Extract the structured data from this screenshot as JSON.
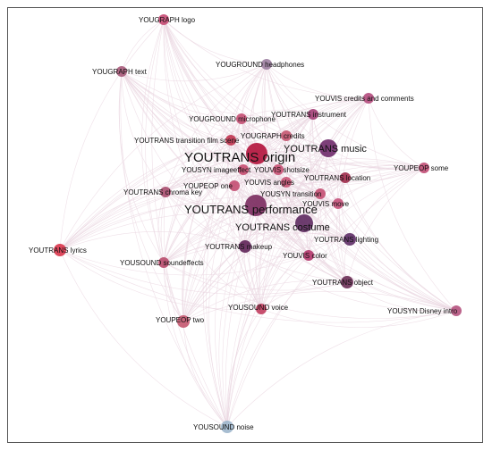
{
  "graph": {
    "nodes": [
      {
        "id": "yougraph_logo",
        "label": "YOUGRAPH logo",
        "color": "#c74a73",
        "weight": 2
      },
      {
        "id": "yougraph_text",
        "label": "YOUGRAPH text",
        "color": "#a85a7a",
        "weight": 2
      },
      {
        "id": "youground_headphones",
        "label": "YOUGROUND headphones",
        "color": "#9c7ea0",
        "weight": 2
      },
      {
        "id": "youvis_credits_comments",
        "label": "YOUVIS credits and comments",
        "color": "#b24a7c",
        "weight": 2
      },
      {
        "id": "youtrans_instrument",
        "label": "YOUTRANS instrument",
        "color": "#a33d75",
        "weight": 2
      },
      {
        "id": "youground_microphone",
        "label": "YOUGROUND microphone",
        "color": "#c44f73",
        "weight": 2
      },
      {
        "id": "yougraph_credits",
        "label": "YOUGRAPH credits",
        "color": "#c4546f",
        "weight": 2
      },
      {
        "id": "youtrans_music",
        "label": "YOUTRANS music",
        "color": "#6f2a6a",
        "weight": 5
      },
      {
        "id": "youtrans_transition_film",
        "label": "YOUTRANS transition film scene",
        "color": "#c0334f",
        "weight": 3
      },
      {
        "id": "youtrans_origin",
        "label": "YOUTRANS origin",
        "color": "#b2123b",
        "weight": 10
      },
      {
        "id": "yousyn_imageeffect",
        "label": "YOUSYN imageeffect",
        "color": "#c64d70",
        "weight": 2
      },
      {
        "id": "youvis_shotsize",
        "label": "YOUVIS shotsize",
        "color": "#c85073",
        "weight": 2
      },
      {
        "id": "youpeop_some",
        "label": "YOUPEOP some",
        "color": "#c14c74",
        "weight": 2
      },
      {
        "id": "youtrans_location",
        "label": "YOUTRANS location",
        "color": "#9e2a4a",
        "weight": 3
      },
      {
        "id": "youvis_angles",
        "label": "YOUVIS angles",
        "color": "#c85374",
        "weight": 2
      },
      {
        "id": "youpeop_one",
        "label": "YOUPEOP one",
        "color": "#c44e72",
        "weight": 2
      },
      {
        "id": "youtrans_chroma_key",
        "label": "YOUTRANS chroma key",
        "color": "#a84d6e",
        "weight": 2
      },
      {
        "id": "yousyn_transition",
        "label": "YOUSYN transition",
        "color": "#c44e72",
        "weight": 2
      },
      {
        "id": "youvis_move",
        "label": "YOUVIS move",
        "color": "#c5517a",
        "weight": 2
      },
      {
        "id": "youtrans_performance",
        "label": "YOUTRANS performance",
        "color": "#7a2a5e",
        "weight": 9
      },
      {
        "id": "youtrans_costume",
        "label": "YOUTRANS costume",
        "color": "#5e2a60",
        "weight": 6
      },
      {
        "id": "youtrans_lighting",
        "label": "YOUTRANS lighting",
        "color": "#5e2c66",
        "weight": 3
      },
      {
        "id": "youtrans_makeup",
        "label": "YOUTRANS makeup",
        "color": "#5f2458",
        "weight": 3
      },
      {
        "id": "youtrans_lyrics",
        "label": "YOUTRANS lyrics",
        "color": "#d9344a",
        "weight": 3
      },
      {
        "id": "youvis_color",
        "label": "YOUVIS color",
        "color": "#b3356a",
        "weight": 2
      },
      {
        "id": "yousound_soundeffects",
        "label": "YOUSOUND soundeffects",
        "color": "#b84a6c",
        "weight": 2
      },
      {
        "id": "youtrans_object",
        "label": "YOUTRANS object",
        "color": "#6a2d55",
        "weight": 3
      },
      {
        "id": "yousound_voice",
        "label": "YOUSOUND voice",
        "color": "#c13c5e",
        "weight": 2
      },
      {
        "id": "yousyn_disney_intro",
        "label": "YOUSYN Disney intro",
        "color": "#b5527e",
        "weight": 2
      },
      {
        "id": "youpeop_two",
        "label": "YOUPEOP two",
        "color": "#c4566f",
        "weight": 3
      },
      {
        "id": "yousound_noise",
        "label": "YOUSOUND noise",
        "color": "#9db6cc",
        "weight": 3
      }
    ],
    "edge_color": "#ead6e0"
  }
}
